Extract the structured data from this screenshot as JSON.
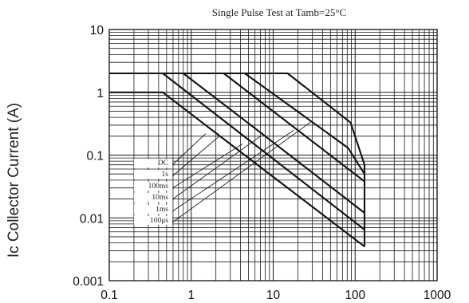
{
  "chart_data": {
    "type": "line",
    "title": "Single Pulse Test at Tamb=25°C",
    "xlabel": "",
    "ylabel": "Ic Collector Current (A)",
    "xscale": "log",
    "yscale": "log",
    "xlim": [
      0.1,
      1000
    ],
    "ylim": [
      0.001,
      10
    ],
    "grid": true,
    "x_tick_labels": [
      "0.1",
      "1",
      "10",
      "100",
      "1000"
    ],
    "y_tick_labels": [
      "0.001",
      "0.01",
      "0.1",
      "1",
      "10"
    ],
    "curve_labels": [
      "DC",
      "1s",
      "100ms",
      "10ms",
      "1ms",
      "100μs"
    ],
    "series": [
      {
        "points": [
          [
            0.1,
            1.0
          ],
          [
            0.45,
            1.0
          ],
          [
            7.5,
            0.06
          ],
          [
            130,
            0.0035
          ]
        ]
      },
      {
        "points": [
          [
            0.1,
            2.0
          ],
          [
            0.45,
            2.0
          ],
          [
            4.0,
            0.22
          ],
          [
            130,
            0.0065
          ]
        ]
      },
      {
        "points": [
          [
            0.1,
            2.0
          ],
          [
            0.8,
            2.0
          ],
          [
            5.0,
            0.32
          ],
          [
            130,
            0.012
          ]
        ]
      },
      {
        "points": [
          [
            0.1,
            2.0
          ],
          [
            2.5,
            2.0
          ],
          [
            130,
            0.038
          ]
        ]
      },
      {
        "points": [
          [
            0.1,
            2.0
          ],
          [
            4.5,
            2.0
          ],
          [
            82,
            0.13
          ],
          [
            130,
            0.05
          ]
        ]
      },
      {
        "points": [
          [
            0.1,
            2.0
          ],
          [
            15,
            2.0
          ],
          [
            88,
            0.33
          ],
          [
            130,
            0.07
          ],
          [
            130,
            0.0035
          ]
        ]
      }
    ],
    "colors": {
      "line": "#111111",
      "grid": "#1a1a1a",
      "label_line": "#222222"
    }
  }
}
